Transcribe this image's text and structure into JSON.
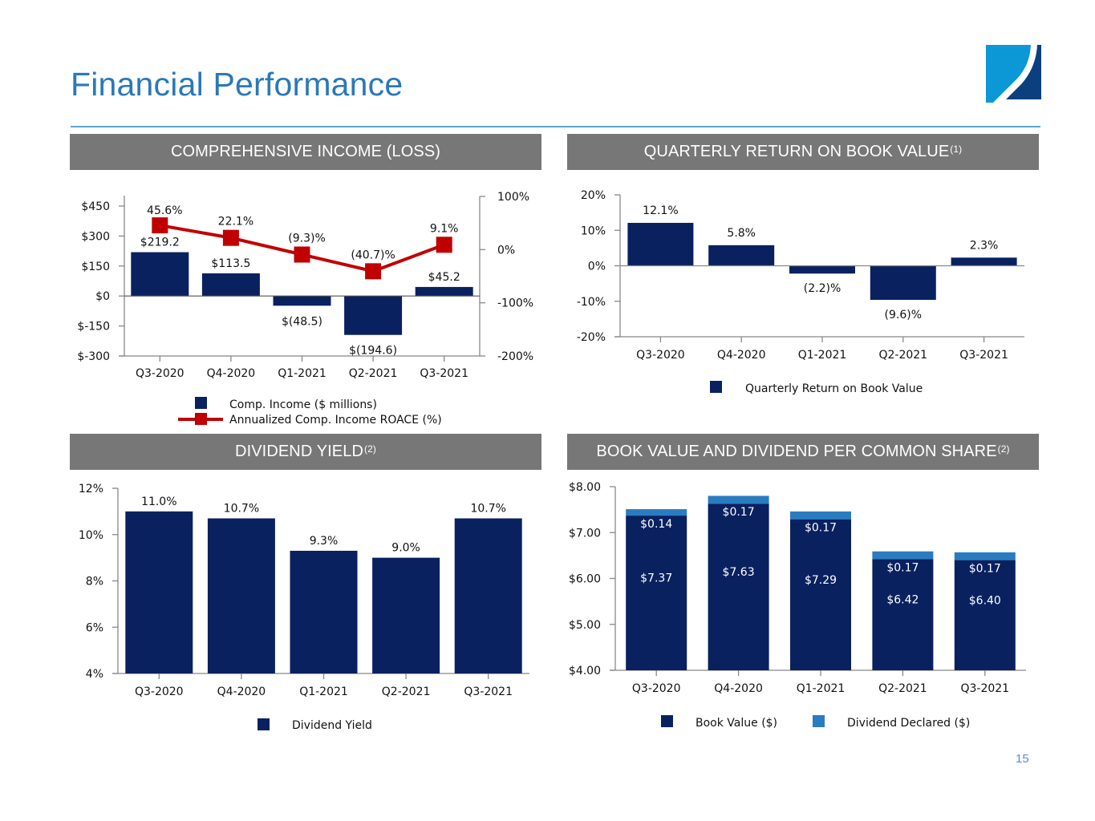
{
  "page": {
    "title": "Financial Performance",
    "page_number": "15",
    "logo": "company-logo-icon"
  },
  "colors": {
    "title": "#2a79b7",
    "header_bg": "#777777",
    "navy": "#0a2160",
    "light_blue": "#2a7cc1",
    "red": "#c00000",
    "axis": "#888888"
  },
  "panels": {
    "comp_income": {
      "title": "COMPREHENSIVE INCOME (LOSS)",
      "sup": ""
    },
    "return_bv": {
      "title": "QUARTERLY RETURN ON BOOK VALUE",
      "sup": "(1)"
    },
    "div_yield": {
      "title": "DIVIDEND YIELD",
      "sup": "(2)"
    },
    "bv_div": {
      "title": "BOOK VALUE AND DIVIDEND PER COMMON SHARE",
      "sup": "(2)"
    }
  },
  "chart_data": [
    {
      "id": "comp_income",
      "type": "bar",
      "title": "COMPREHENSIVE INCOME (LOSS)",
      "categories": [
        "Q3-2020",
        "Q4-2020",
        "Q1-2021",
        "Q2-2021",
        "Q3-2021"
      ],
      "series": [
        {
          "name": "Comp. Income ($ millions)",
          "type": "bar",
          "axis": "left",
          "values": [
            219.2,
            113.5,
            -48.5,
            -194.6,
            45.2
          ],
          "labels": [
            "$219.2",
            "$113.5",
            "$(48.5)",
            "$(194.6)",
            "$45.2"
          ]
        },
        {
          "name": "Annualized Comp. Income ROACE (%)",
          "type": "line",
          "axis": "right",
          "values": [
            45.6,
            22.1,
            -9.3,
            -40.7,
            9.1
          ],
          "labels": [
            "45.6%",
            "22.1%",
            "(9.3)%",
            "(40.7)%",
            "9.1%"
          ]
        }
      ],
      "y_left": {
        "range": [
          -300,
          450
        ],
        "ticks": [
          450,
          300,
          150,
          0,
          -150,
          -300
        ],
        "tick_labels": [
          "$450",
          "$300",
          "$150",
          "$0",
          "$-150",
          "$-300"
        ]
      },
      "y_right": {
        "range": [
          -200,
          100
        ],
        "ticks": [
          100,
          0,
          -100,
          -200
        ],
        "tick_labels": [
          "100%",
          "0%",
          "-100%",
          "-200%"
        ]
      },
      "legend": [
        "Comp. Income ($ millions)",
        "Annualized Comp. Income ROACE (%)"
      ],
      "legend_position": "bottom",
      "grid": false
    },
    {
      "id": "return_bv",
      "type": "bar",
      "title": "QUARTERLY RETURN ON BOOK VALUE",
      "categories": [
        "Q3-2020",
        "Q4-2020",
        "Q1-2021",
        "Q2-2021",
        "Q3-2021"
      ],
      "series": [
        {
          "name": "Quarterly Return on Book Value",
          "values": [
            12.1,
            5.8,
            -2.2,
            -9.6,
            2.3
          ],
          "labels": [
            "12.1%",
            "5.8%",
            "(2.2)%",
            "(9.6)%",
            "2.3%"
          ]
        }
      ],
      "ylim": [
        -20,
        20
      ],
      "ticks": [
        20,
        10,
        0,
        -10,
        -20
      ],
      "tick_labels": [
        "20%",
        "10%",
        "0%",
        "-10%",
        "-20%"
      ],
      "legend": [
        "Quarterly Return on Book Value"
      ],
      "legend_position": "bottom",
      "grid": false
    },
    {
      "id": "div_yield",
      "type": "bar",
      "title": "DIVIDEND YIELD",
      "categories": [
        "Q3-2020",
        "Q4-2020",
        "Q1-2021",
        "Q2-2021",
        "Q3-2021"
      ],
      "series": [
        {
          "name": "Dividend Yield",
          "values": [
            11.0,
            10.7,
            9.3,
            9.0,
            10.7
          ],
          "labels": [
            "11.0%",
            "10.7%",
            "9.3%",
            "9.0%",
            "10.7%"
          ]
        }
      ],
      "ylim": [
        4,
        12
      ],
      "ticks": [
        12,
        10,
        8,
        6,
        4
      ],
      "tick_labels": [
        "12%",
        "10%",
        "8%",
        "6%",
        "4%"
      ],
      "legend": [
        "Dividend Yield"
      ],
      "legend_position": "bottom",
      "grid": false
    },
    {
      "id": "bv_div",
      "type": "bar",
      "stacked": true,
      "title": "BOOK VALUE AND DIVIDEND PER COMMON SHARE",
      "categories": [
        "Q3-2020",
        "Q4-2020",
        "Q1-2021",
        "Q2-2021",
        "Q3-2021"
      ],
      "series": [
        {
          "name": "Book Value ($)",
          "values": [
            7.37,
            7.63,
            7.29,
            6.42,
            6.4
          ],
          "labels": [
            "$7.37",
            "$7.63",
            "$7.29",
            "$6.42",
            "$6.40"
          ]
        },
        {
          "name": "Dividend Declared ($)",
          "values": [
            0.14,
            0.17,
            0.17,
            0.17,
            0.17
          ],
          "labels": [
            "$0.14",
            "$0.17",
            "$0.17",
            "$0.17",
            "$0.17"
          ]
        }
      ],
      "ylim": [
        4,
        8
      ],
      "ticks": [
        8,
        7,
        6,
        5,
        4
      ],
      "tick_labels": [
        "$8.00",
        "$7.00",
        "$6.00",
        "$5.00",
        "$4.00"
      ],
      "legend": [
        "Book Value ($)",
        "Dividend Declared ($)"
      ],
      "legend_position": "bottom",
      "grid": false
    }
  ]
}
